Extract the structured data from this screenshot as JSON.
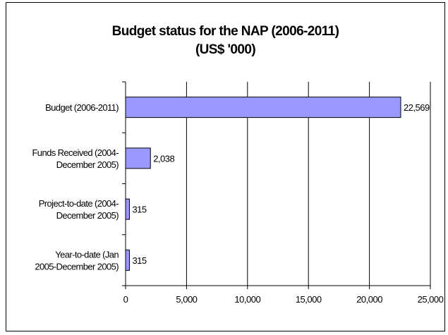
{
  "chart_data": {
    "type": "bar",
    "orientation": "horizontal",
    "title": "Budget status for the NAP (2006-2011)",
    "subtitle": "(US$ '000)",
    "categories": [
      "Budget (2006-2011)",
      "Funds Received (2004-December 2005)",
      "Project-to-date (2004-December 2005)",
      "Year-to-date (Jan 2005-December 2005)"
    ],
    "category_lines": [
      [
        "Budget (2006-2011)"
      ],
      [
        "Funds Received (2004-",
        "December 2005)"
      ],
      [
        "Project-to-date (2004-",
        "December 2005)"
      ],
      [
        "Year-to-date (Jan",
        "2005-December 2005)"
      ]
    ],
    "values": [
      22569,
      2038,
      315,
      315
    ],
    "value_labels": [
      "22,569",
      "2,038",
      "315",
      "315"
    ],
    "xlim": [
      0,
      25000
    ],
    "xticks": [
      0,
      5000,
      10000,
      15000,
      20000,
      25000
    ],
    "xtick_labels": [
      "0",
      "5,000",
      "10,000",
      "15,000",
      "20,000",
      "25,000"
    ],
    "grid": "vertical",
    "bar_color": "#9999ff",
    "bar_border": "#000000"
  }
}
